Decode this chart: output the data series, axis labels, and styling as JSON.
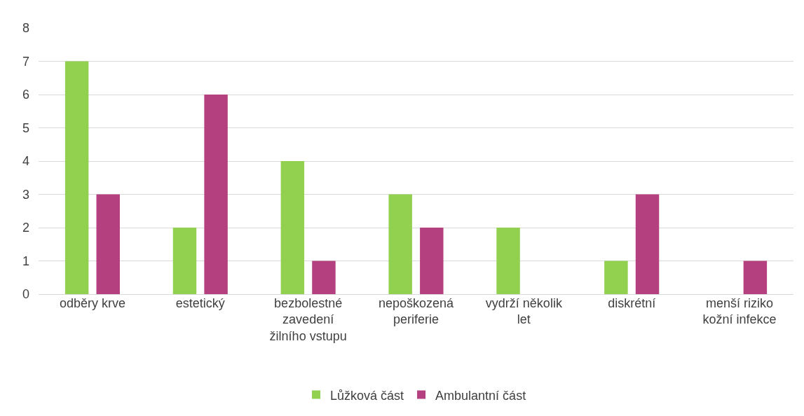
{
  "chart_data": {
    "type": "bar",
    "categories": [
      "odběry krve",
      "estetický",
      "bezbolestné zavedení žilního vstupu",
      "nepoškozená periferie",
      "vydrží několik let",
      "diskrétní",
      "menší riziko kožní infekce"
    ],
    "series": [
      {
        "name": "Lůžková část",
        "color": "#92d050",
        "values": [
          7,
          2,
          4,
          3,
          2,
          1,
          0
        ]
      },
      {
        "name": "Ambulantní část",
        "color": "#b54080",
        "values": [
          3,
          6,
          1,
          2,
          0,
          3,
          1
        ]
      }
    ],
    "ylim": [
      0,
      8
    ],
    "yticks": [
      0,
      1,
      2,
      3,
      4,
      5,
      6,
      7,
      8
    ],
    "grid": "y",
    "legend": "bottom"
  }
}
